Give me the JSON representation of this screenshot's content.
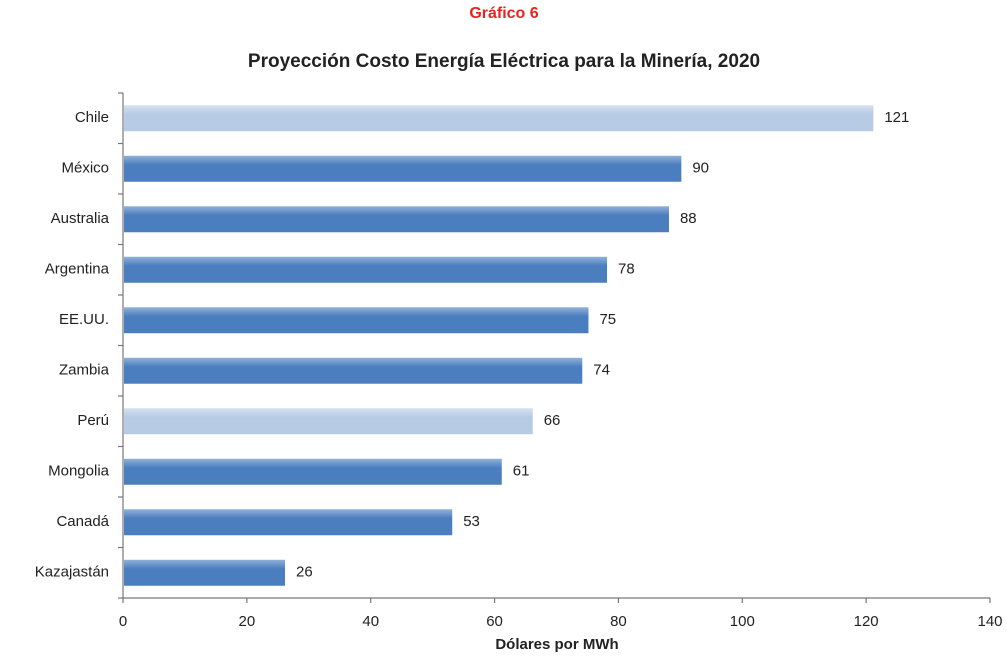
{
  "chart_data": {
    "type": "bar",
    "orientation": "horizontal",
    "kicker": "Gráfico 6",
    "title": "Proyección Costo Energía Eléctrica para la Minería, 2020",
    "x_label": "Dólares por MWh",
    "categories": [
      "Chile",
      "México",
      "Australia",
      "Argentina",
      "EE.UU.",
      "Zambia",
      "Perú",
      "Mongolia",
      "Canadá",
      "Kazajastán"
    ],
    "values": [
      121,
      90,
      88,
      78,
      75,
      74,
      66,
      61,
      53,
      26
    ],
    "colors": [
      "#b7cbe4",
      "#4a7ebf",
      "#4a7ebf",
      "#4a7ebf",
      "#4a7ebf",
      "#4a7ebf",
      "#b7cbe4",
      "#4a7ebf",
      "#4a7ebf",
      "#4a7ebf"
    ],
    "xlim": [
      0,
      140
    ],
    "xticks": [
      0,
      20,
      40,
      60,
      80,
      100,
      120,
      140
    ],
    "grid": false
  }
}
